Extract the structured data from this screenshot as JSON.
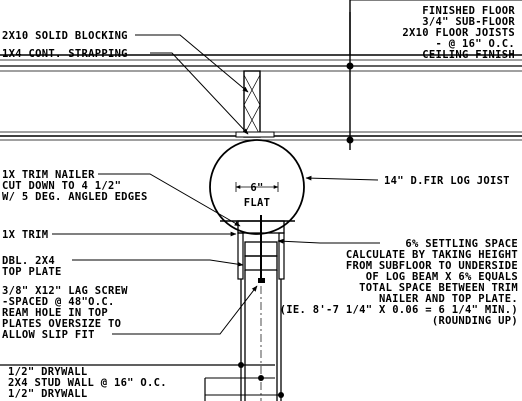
{
  "labels": {
    "floor": [
      "FINISHED FLOOR",
      "3/4\" SUB-FLOOR",
      "2X10 FLOOR JOISTS",
      "- @ 16\" O.C.",
      "CEILING FINISH"
    ],
    "solid_blocking": "2X10 SOLID BLOCKING",
    "cont_strapping": "1X4 CONT. STRAPPING",
    "log_joist": "14\"  D.FIR LOG JOIST",
    "trim_nailer": [
      "1X TRIM NAILER",
      "CUT DOWN TO 4 1/2\"",
      "W/ 5 DEG. ANGLED EDGES"
    ],
    "flat_dim": "6\"",
    "flat": "FLAT",
    "trim": "1X TRIM",
    "top_plate": [
      "DBL. 2X4",
      "TOP PLATE"
    ],
    "lag_screw": [
      "3/8\"  X12\" LAG SCREW",
      "-SPACED @ 48\"O.C.",
      "REAM HOLE IN TOP",
      "PLATES OVERSIZE TO",
      "ALLOW SLIP FIT"
    ],
    "settling": [
      "6% SETTLING SPACE",
      "CALCULATE BY TAKING HEIGHT",
      "FROM SUBFLOOR TO UNDERSIDE",
      "OF LOG BEAM X 6% EQUALS",
      "TOTAL SPACE BETWEEN TRIM",
      "NAILER AND TOP PLATE.",
      "(IE. 8'-7 1/4\" X 0.06 = 6 1/4\" MIN.)",
      "(ROUNDING UP)"
    ],
    "wall": [
      "1/2\" DRYWALL",
      "2X4 STUD WALL @ 16\" O.C.",
      "1/2\" DRYWALL"
    ]
  }
}
